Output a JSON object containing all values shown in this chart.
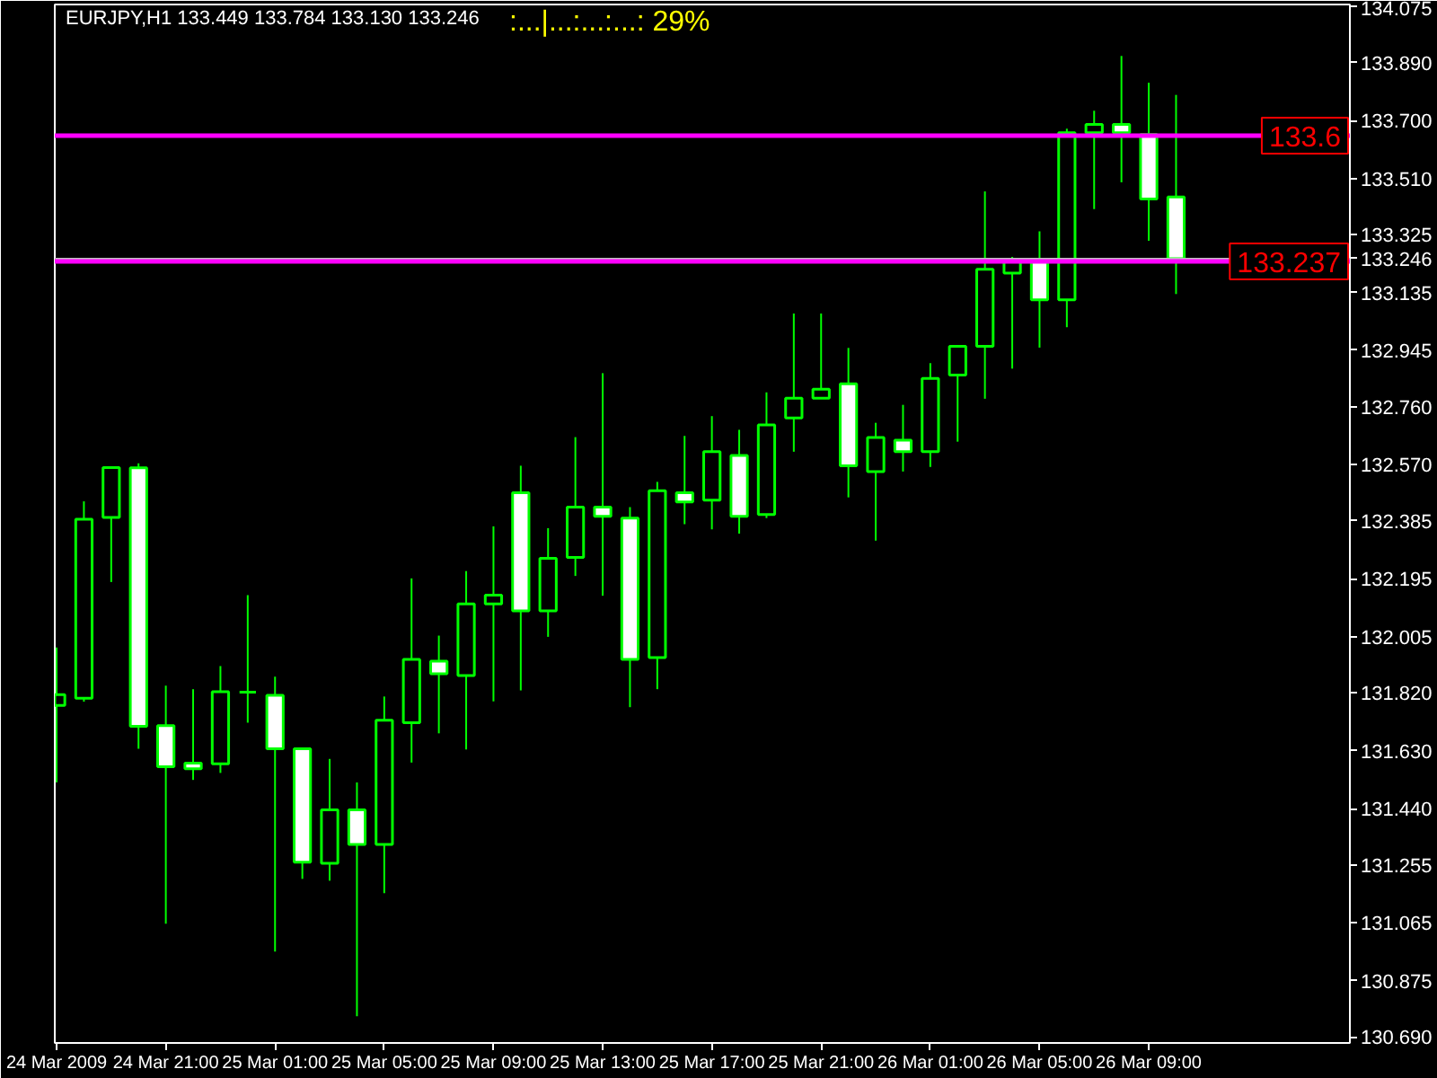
{
  "chart_data": {
    "type": "candlestick",
    "title": "EURJPY,H1  133.449 133.784 133.130 133.246",
    "annotations": [
      ":...|...:...:...:  29%"
    ],
    "color": "#00ff00",
    "x": [
      "2009-03-24T17:00",
      "2009-03-24T18:00",
      "2009-03-24T19:00",
      "2009-03-24T20:00",
      "2009-03-24T21:00",
      "2009-03-24T22:00",
      "2009-03-24T23:00",
      "2009-03-25T00:00",
      "2009-03-25T01:00",
      "2009-03-25T02:00",
      "2009-03-25T03:00",
      "2009-03-25T04:00",
      "2009-03-25T05:00",
      "2009-03-25T06:00",
      "2009-03-25T07:00",
      "2009-03-25T08:00",
      "2009-03-25T09:00",
      "2009-03-25T10:00",
      "2009-03-25T11:00",
      "2009-03-25T12:00",
      "2009-03-25T13:00",
      "2009-03-25T14:00",
      "2009-03-25T15:00",
      "2009-03-25T16:00",
      "2009-03-25T17:00",
      "2009-03-25T18:00",
      "2009-03-25T19:00",
      "2009-03-25T20:00",
      "2009-03-25T21:00",
      "2009-03-25T22:00",
      "2009-03-25T23:00",
      "2009-03-26T00:00",
      "2009-03-26T01:00",
      "2009-03-26T02:00",
      "2009-03-26T03:00",
      "2009-03-26T04:00",
      "2009-03-26T05:00",
      "2009-03-26T06:00",
      "2009-03-26T07:00",
      "2009-03-26T08:00",
      "2009-03-26T09:00",
      "2009-03-26T10:00"
    ],
    "ohlc": [
      [
        131.779,
        131.969,
        131.526,
        131.814
      ],
      [
        131.802,
        132.449,
        131.791,
        132.39
      ],
      [
        132.396,
        132.561,
        132.184,
        132.56
      ],
      [
        132.559,
        132.574,
        131.636,
        131.71
      ],
      [
        131.712,
        131.844,
        131.062,
        131.577
      ],
      [
        131.589,
        131.832,
        131.534,
        131.571
      ],
      [
        131.587,
        131.908,
        131.557,
        131.824
      ],
      [
        131.822,
        132.141,
        131.722,
        131.822
      ],
      [
        131.812,
        131.873,
        130.97,
        131.636
      ],
      [
        131.636,
        131.636,
        131.209,
        131.264
      ],
      [
        131.26,
        131.603,
        131.203,
        131.436
      ],
      [
        131.436,
        131.526,
        130.758,
        131.322
      ],
      [
        131.322,
        131.808,
        131.162,
        131.73
      ],
      [
        131.722,
        132.196,
        131.591,
        131.93
      ],
      [
        131.924,
        132.008,
        131.687,
        131.883
      ],
      [
        131.877,
        132.22,
        131.634,
        132.112
      ],
      [
        132.112,
        132.367,
        131.792,
        132.141
      ],
      [
        132.477,
        132.566,
        131.828,
        132.089
      ],
      [
        132.089,
        132.361,
        132.004,
        132.262
      ],
      [
        132.265,
        132.66,
        132.204,
        132.43
      ],
      [
        132.43,
        132.87,
        132.139,
        132.4
      ],
      [
        132.394,
        132.43,
        131.773,
        131.93
      ],
      [
        131.936,
        132.513,
        131.832,
        132.484
      ],
      [
        132.477,
        132.664,
        132.374,
        132.447
      ],
      [
        132.453,
        132.729,
        132.357,
        132.612
      ],
      [
        132.6,
        132.684,
        132.343,
        132.4
      ],
      [
        132.406,
        132.807,
        132.394,
        132.7
      ],
      [
        132.723,
        133.066,
        132.612,
        132.788
      ],
      [
        132.788,
        133.066,
        132.788,
        132.817
      ],
      [
        132.835,
        132.953,
        132.462,
        132.566
      ],
      [
        132.547,
        132.707,
        132.32,
        132.659
      ],
      [
        132.65,
        132.766,
        132.547,
        132.612
      ],
      [
        132.612,
        132.903,
        132.562,
        132.853
      ],
      [
        132.864,
        132.958,
        132.645,
        132.958
      ],
      [
        132.958,
        133.467,
        132.786,
        133.211
      ],
      [
        133.199,
        133.252,
        132.885,
        133.238
      ],
      [
        133.236,
        133.336,
        132.954,
        133.111
      ],
      [
        133.111,
        133.673,
        133.021,
        133.66
      ],
      [
        133.66,
        133.732,
        133.409,
        133.687
      ],
      [
        133.687,
        133.912,
        133.497,
        133.66
      ],
      [
        133.654,
        133.824,
        133.305,
        133.442
      ],
      [
        133.449,
        133.784,
        133.13,
        133.246
      ]
    ],
    "xlim": [
      "2009-03-24T16:56",
      "2009-03-26T16:22"
    ],
    "ylim": [
      130.67,
      134.081
    ],
    "xticks": [
      {
        "value": "2009-03-24T17:00",
        "label": "24 Mar 2009"
      },
      {
        "value": "2009-03-24T21:00",
        "label": "24 Mar 21:00"
      },
      {
        "value": "2009-03-25T01:00",
        "label": "25 Mar 01:00"
      },
      {
        "value": "2009-03-25T05:00",
        "label": "25 Mar 05:00"
      },
      {
        "value": "2009-03-25T09:00",
        "label": "25 Mar 09:00"
      },
      {
        "value": "2009-03-25T13:00",
        "label": "25 Mar 13:00"
      },
      {
        "value": "2009-03-25T17:00",
        "label": "25 Mar 17:00"
      },
      {
        "value": "2009-03-25T21:00",
        "label": "25 Mar 21:00"
      },
      {
        "value": "2009-03-26T01:00",
        "label": "26 Mar 01:00"
      },
      {
        "value": "2009-03-26T05:00",
        "label": "26 Mar 05:00"
      },
      {
        "value": "2009-03-26T09:00",
        "label": "26 Mar 09:00"
      }
    ],
    "yticks": [
      {
        "value": 134.075,
        "label": "134.075"
      },
      {
        "value": 133.89,
        "label": "133.890"
      },
      {
        "value": 133.7,
        "label": "133.700"
      },
      {
        "value": 133.51,
        "label": "133.510"
      },
      {
        "value": 133.325,
        "label": "133.325"
      },
      {
        "value": 133.135,
        "label": "133.135"
      },
      {
        "value": 132.945,
        "label": "132.945"
      },
      {
        "value": 132.76,
        "label": "132.760"
      },
      {
        "value": 132.57,
        "label": "132.570"
      },
      {
        "value": 132.385,
        "label": "132.385"
      },
      {
        "value": 132.195,
        "label": "132.195"
      },
      {
        "value": 132.005,
        "label": "132.005"
      },
      {
        "value": 131.82,
        "label": "131.820"
      },
      {
        "value": 131.63,
        "label": "131.630"
      },
      {
        "value": 131.44,
        "label": "131.440"
      },
      {
        "value": 131.255,
        "label": "131.255"
      },
      {
        "value": 131.065,
        "label": "131.065"
      },
      {
        "value": 130.875,
        "label": "130.875"
      },
      {
        "value": 130.69,
        "label": "130.690"
      }
    ],
    "ref_lines": [
      {
        "axis": "y",
        "value": 133.246,
        "label": "133.246",
        "color": "#c0c0c0"
      },
      {
        "axis": "y",
        "value": 133.65,
        "label": "133.6",
        "color": "#ff00ff"
      },
      {
        "axis": "y",
        "value": 133.237,
        "label": "133.237",
        "color": "#ff00ff"
      }
    ]
  }
}
